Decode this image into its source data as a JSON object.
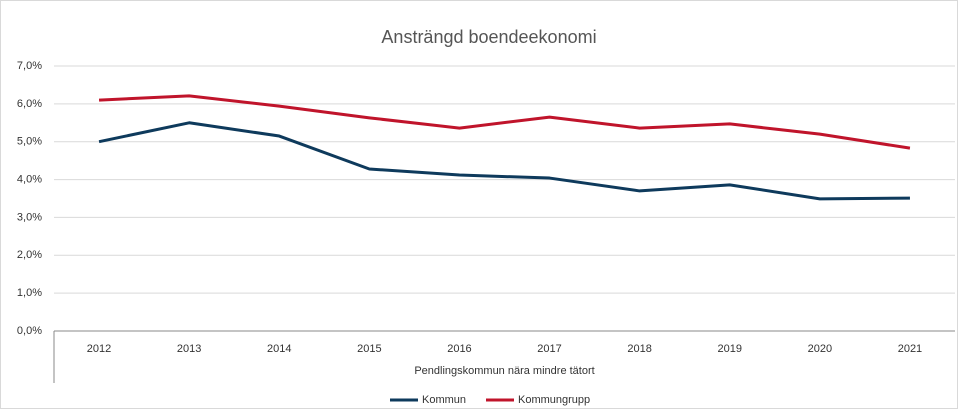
{
  "chart_data": {
    "type": "line",
    "title": "Ansträngd boendeekonomi",
    "x_label": "Pendlingskommun nära mindre tätort",
    "categories": [
      "2012",
      "2013",
      "2014",
      "2015",
      "2016",
      "2017",
      "2018",
      "2019",
      "2020",
      "2021"
    ],
    "series": [
      {
        "name": "Kommun",
        "color": "#0e3a5c",
        "values": [
          5.0,
          5.5,
          5.15,
          4.28,
          4.12,
          4.04,
          3.7,
          3.86,
          3.49,
          3.51
        ]
      },
      {
        "name": "Kommungrupp",
        "color": "#c0142b",
        "values": [
          6.1,
          6.21,
          5.94,
          5.63,
          5.36,
          5.65,
          5.36,
          5.47,
          5.2,
          4.83
        ]
      }
    ],
    "ylim": [
      0,
      7
    ],
    "yticks": [
      {
        "value": 0,
        "label": "0,0%"
      },
      {
        "value": 1,
        "label": "1,0%"
      },
      {
        "value": 2,
        "label": "2,0%"
      },
      {
        "value": 3,
        "label": "3,0%"
      },
      {
        "value": 4,
        "label": "4,0%"
      },
      {
        "value": 5,
        "label": "5,0%"
      },
      {
        "value": 6,
        "label": "6,0%"
      },
      {
        "value": 7,
        "label": "7,0%"
      }
    ],
    "grid": true,
    "legend": "bottom"
  }
}
